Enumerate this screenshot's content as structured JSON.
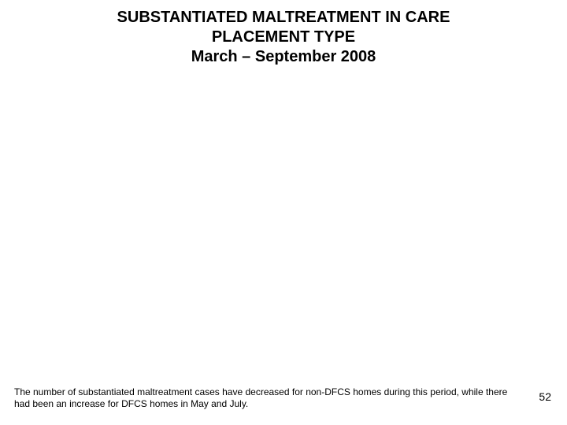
{
  "title": {
    "line1": "SUBSTANTIATED MALTREATMENT IN CARE",
    "line2": "PLACEMENT TYPE",
    "line3": "March – September 2008",
    "fontsize": 20,
    "fontweight": "bold",
    "color": "#000000"
  },
  "footer": {
    "text": "The number of substantiated maltreatment cases have decreased for non-DFCS homes during this period, while there had been an increase for DFCS homes in May and July.",
    "fontsize": 12,
    "color": "#000000"
  },
  "page_number": {
    "value": "52",
    "fontsize": 14,
    "color": "#000000"
  },
  "background_color": "#ffffff"
}
